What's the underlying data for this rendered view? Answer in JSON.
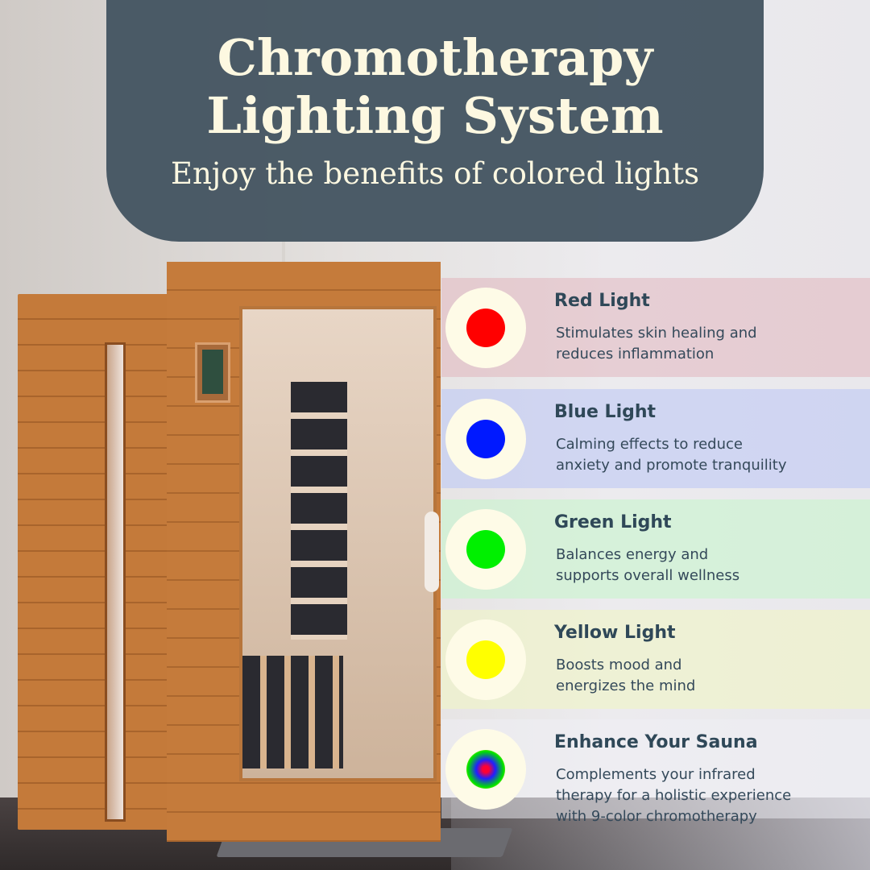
{
  "header": {
    "title_line1": "Chromotherapy",
    "title_line2": "Lighting System",
    "subtitle": "Enjoy the benefits of colored lights"
  },
  "features": [
    {
      "title": "Red Light",
      "line1": "Stimulates skin healing and",
      "line2": "reduces inflammation",
      "line3": "",
      "color": "#ff0000",
      "band": "rgba(225,170,180,0.45)",
      "icon": "red-light-dot"
    },
    {
      "title": "Blue Light",
      "line1": "Calming effects to reduce",
      "line2": "anxiety and promote tranquility",
      "line3": "",
      "color": "#0019ff",
      "band": "rgba(190,200,245,0.6)",
      "icon": "blue-light-dot"
    },
    {
      "title": "Green Light",
      "line1": "Balances energy and",
      "line2": "supports overall wellness",
      "line3": "",
      "color": "#00f000",
      "band": "rgba(200,245,205,0.6)",
      "icon": "green-light-dot"
    },
    {
      "title": "Yellow Light",
      "line1": "Boosts mood and",
      "line2": "energizes the mind",
      "line3": "",
      "color": "#ffff00",
      "band": "rgba(240,245,200,0.65)",
      "icon": "yellow-light-dot"
    },
    {
      "title": "Enhance Your Sauna",
      "line1": "Complements your infrared",
      "line2": "therapy for a holistic experience",
      "line3": "with 9-color chromotherapy",
      "color": "radial-gradient",
      "band": "rgba(240,240,245,0.5)",
      "icon": "rainbow-light-dot"
    }
  ]
}
